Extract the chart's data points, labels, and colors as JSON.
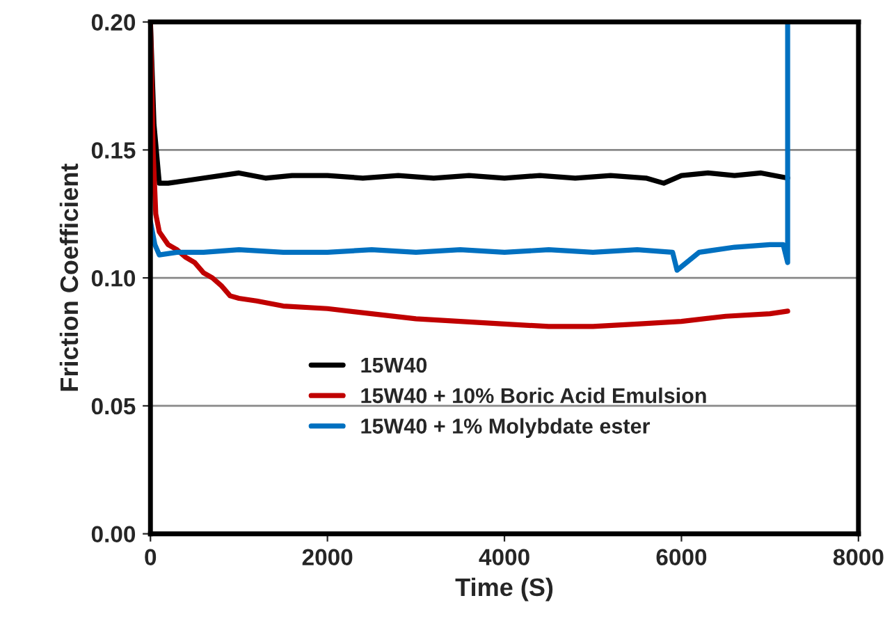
{
  "chart_data": {
    "type": "line",
    "xlabel": "Time (S)",
    "ylabel": "Friction Coefficient",
    "xlim": [
      0,
      8000
    ],
    "ylim": [
      0,
      0.2
    ],
    "xticks": [
      0,
      2000,
      4000,
      6000,
      8000
    ],
    "yticks": [
      {
        "value": 0,
        "label": "0.00"
      },
      {
        "value": 0.05,
        "label": "0.05"
      },
      {
        "value": 0.1,
        "label": "0.10"
      },
      {
        "value": 0.15,
        "label": "0.15"
      },
      {
        "value": 0.2,
        "label": "0.20"
      }
    ],
    "grid": "y",
    "legend": "bottom left",
    "marker": "none",
    "line_style": "solid",
    "series": [
      {
        "name": "15W40",
        "color": "#000000",
        "x": [
          0,
          40,
          100,
          200,
          400,
          600,
          800,
          1000,
          1300,
          1600,
          2000,
          2400,
          2800,
          3200,
          3600,
          4000,
          4400,
          4800,
          5200,
          5600,
          5800,
          6000,
          6300,
          6600,
          6900,
          7200
        ],
        "values": [
          0.2,
          0.16,
          0.137,
          0.137,
          0.138,
          0.139,
          0.14,
          0.141,
          0.139,
          0.14,
          0.14,
          0.139,
          0.14,
          0.139,
          0.14,
          0.139,
          0.14,
          0.139,
          0.14,
          0.139,
          0.137,
          0.14,
          0.141,
          0.14,
          0.141,
          0.139
        ]
      },
      {
        "name": "15W40 + 10% Boric Acid Emulsion",
        "color": "#c00000",
        "x": [
          0,
          30,
          60,
          100,
          200,
          300,
          400,
          500,
          600,
          700,
          800,
          900,
          1000,
          1200,
          1500,
          2000,
          2500,
          3000,
          3500,
          4000,
          4500,
          5000,
          5500,
          6000,
          6500,
          7000,
          7200
        ],
        "values": [
          0.2,
          0.15,
          0.125,
          0.118,
          0.113,
          0.111,
          0.108,
          0.106,
          0.102,
          0.1,
          0.097,
          0.093,
          0.092,
          0.091,
          0.089,
          0.088,
          0.086,
          0.084,
          0.083,
          0.082,
          0.081,
          0.081,
          0.082,
          0.083,
          0.085,
          0.086,
          0.087
        ]
      },
      {
        "name": "15W40 + 1% Molybdate ester",
        "color": "#0070c0",
        "x": [
          0,
          50,
          100,
          300,
          600,
          1000,
          1500,
          2000,
          2500,
          3000,
          3500,
          4000,
          4500,
          5000,
          5500,
          5900,
          5950,
          6200,
          6600,
          7000,
          7150,
          7200,
          7200
        ],
        "values": [
          0.122,
          0.113,
          0.109,
          0.11,
          0.11,
          0.111,
          0.11,
          0.11,
          0.111,
          0.11,
          0.111,
          0.11,
          0.111,
          0.11,
          0.111,
          0.11,
          0.103,
          0.11,
          0.112,
          0.113,
          0.113,
          0.106,
          0.2
        ]
      }
    ]
  }
}
